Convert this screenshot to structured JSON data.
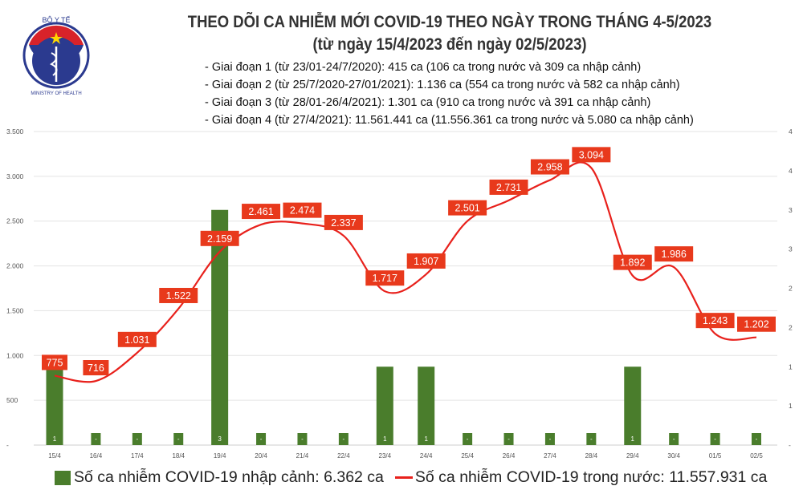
{
  "header": {
    "logo_text": "BỘ Y TẾ",
    "logo_subtext": "MINISTRY OF HEALTH",
    "title": "THEO DÕI CA NHIỄM MỚI COVID-19 THEO NGÀY TRONG THÁNG 4-5/2023",
    "subtitle": "(từ ngày 15/4/2023 đến ngày 02/5/2023)",
    "stages": [
      "- Giai đoạn 1 (từ 23/01-24/7/2020): 415 ca (106 ca trong nước và 309 ca nhập cảnh)",
      "- Giai đoạn 2 (từ 25/7/2020-27/01/2021): 1.136 ca (554 ca trong nước và 582 ca nhập cảnh)",
      "- Giai đoạn 3 (từ 28/01-26/4/2021): 1.301 ca (910 ca trong nước và 391 ca nhập cảnh)",
      "- Giai đoạn 4 (từ 27/4/2021): 11.561.441 ca (11.556.361 ca trong nước và 5.080 ca nhập cảnh)"
    ]
  },
  "chart_data": {
    "type": "bar+line",
    "categories": [
      "15/4",
      "16/4",
      "17/4",
      "18/4",
      "19/4",
      "20/4",
      "21/4",
      "22/4",
      "23/4",
      "24/4",
      "25/4",
      "26/4",
      "27/4",
      "28/4",
      "29/4",
      "30/4",
      "01/5",
      "02/5"
    ],
    "series": [
      {
        "name": "Số ca nhiễm COVID-19 nhập cảnh: 6.362 ca",
        "type": "bar",
        "axis": "right",
        "color": "#4a7d2c",
        "values": [
          1,
          0,
          0,
          0,
          3,
          0,
          0,
          0,
          1,
          1,
          0,
          0,
          0,
          0,
          1,
          0,
          0,
          0
        ],
        "labels": [
          "1",
          "-",
          "-",
          "-",
          "3",
          "-",
          "-",
          "-",
          "1",
          "1",
          "-",
          "-",
          "-",
          "-",
          "1",
          "-",
          "-",
          "-"
        ]
      },
      {
        "name": "Số ca nhiễm COVID-19 trong nước: 11.557.931 ca",
        "type": "line",
        "axis": "left",
        "color": "#e8211c",
        "values": [
          775,
          716,
          1031,
          1522,
          2159,
          2461,
          2474,
          2337,
          1717,
          1907,
          2501,
          2731,
          2958,
          3094,
          1892,
          1986,
          1243,
          1202
        ],
        "labels": [
          "775",
          "716",
          "1.031",
          "1.522",
          "2.159",
          "2.461",
          "2.474",
          "2.337",
          "1.717",
          "1.907",
          "2.501",
          "2.731",
          "2.958",
          "3.094",
          "1.892",
          "1.986",
          "1.243",
          "1.202"
        ]
      }
    ],
    "left_axis": {
      "ylim": [
        0,
        3500
      ],
      "ticks": [
        "-",
        "500",
        "1.000",
        "1.500",
        "2.000",
        "2.500",
        "3.000",
        "3.500"
      ]
    },
    "right_axis": {
      "ylim": [
        0,
        4
      ],
      "ticks": [
        "-",
        "1",
        "1",
        "2",
        "2",
        "3",
        "3",
        "4",
        "4"
      ]
    },
    "grid": true,
    "legend_placement": "bottom",
    "label_color": "#e8391c"
  }
}
